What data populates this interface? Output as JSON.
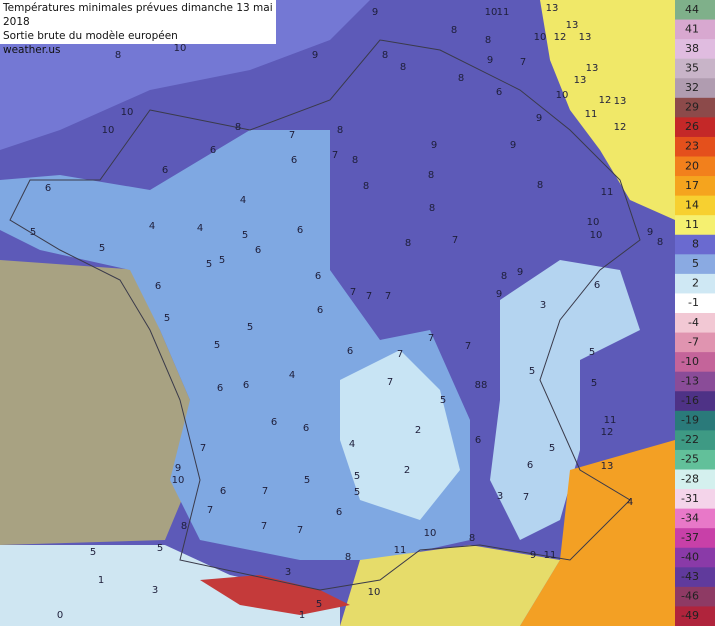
{
  "title": {
    "lines": [
      "Températures minimales prévues dimanche 13 mai 2018",
      "Sortie brute du modèle européen",
      "weather.us"
    ]
  },
  "colorbar": {
    "labels": [
      44,
      41,
      38,
      35,
      32,
      29,
      26,
      23,
      20,
      17,
      14,
      11,
      8,
      5,
      2,
      -1,
      -4,
      -7,
      -10,
      -13,
      -16,
      -19,
      -22,
      -25,
      -28,
      -31,
      -34,
      -37,
      -40,
      -43,
      -46,
      -49
    ],
    "colors": [
      "#7fb08a",
      "#d8a8d0",
      "#e0bce0",
      "#c8b4c8",
      "#b09cb0",
      "#8c4a4a",
      "#c42828",
      "#e4501c",
      "#f2801c",
      "#f5a41e",
      "#f7d030",
      "#f5f070",
      "#6a6ad0",
      "#8aaae2",
      "#cfe8f4",
      "#ffffff",
      "#f2c8d4",
      "#e094b0",
      "#c4649a",
      "#8a4c98",
      "#4e3286",
      "#2a7a7a",
      "#3e9a84",
      "#62c09a",
      "#d4f0ee",
      "#f4d4ea",
      "#e878c8",
      "#c840a8",
      "#8a3aa8",
      "#603a9c",
      "#8e3a64",
      "#b0243c"
    ]
  },
  "map_labels": [
    "9",
    "10",
    "11",
    "13",
    "13",
    "12",
    "13",
    "10",
    "8",
    "8",
    "9",
    "8",
    "8",
    "8",
    "7",
    "10",
    "13",
    "13",
    "12",
    "13",
    "11",
    "12",
    "9",
    "6",
    "9",
    "10",
    "8",
    "10",
    "10",
    "8",
    "7",
    "8",
    "7",
    "6",
    "8",
    "6",
    "6",
    "4",
    "4",
    "4",
    "5",
    "6",
    "8",
    "8",
    "9",
    "9",
    "8",
    "8",
    "7",
    "8",
    "11",
    "10",
    "10",
    "9",
    "8",
    "6",
    "5",
    "5",
    "5",
    "5",
    "6",
    "6",
    "7",
    "7",
    "7",
    "6",
    "9",
    "8",
    "9",
    "3",
    "6",
    "5",
    "5",
    "6",
    "7",
    "7",
    "6",
    "7",
    "5",
    "5",
    "4",
    "6",
    "6",
    "7",
    "88",
    "5",
    "5",
    "5",
    "2",
    "4",
    "6",
    "6",
    "7",
    "9",
    "10",
    "2",
    "6",
    "6",
    "5",
    "6",
    "7",
    "5",
    "5",
    "5",
    "3",
    "7",
    "13",
    "12",
    "11",
    "4",
    "7",
    "8",
    "7",
    "6",
    "7",
    "5",
    "5",
    "11",
    "10",
    "8",
    "9",
    "11",
    "8",
    "3",
    "1",
    "3",
    "10",
    "0",
    "1",
    "5"
  ]
}
